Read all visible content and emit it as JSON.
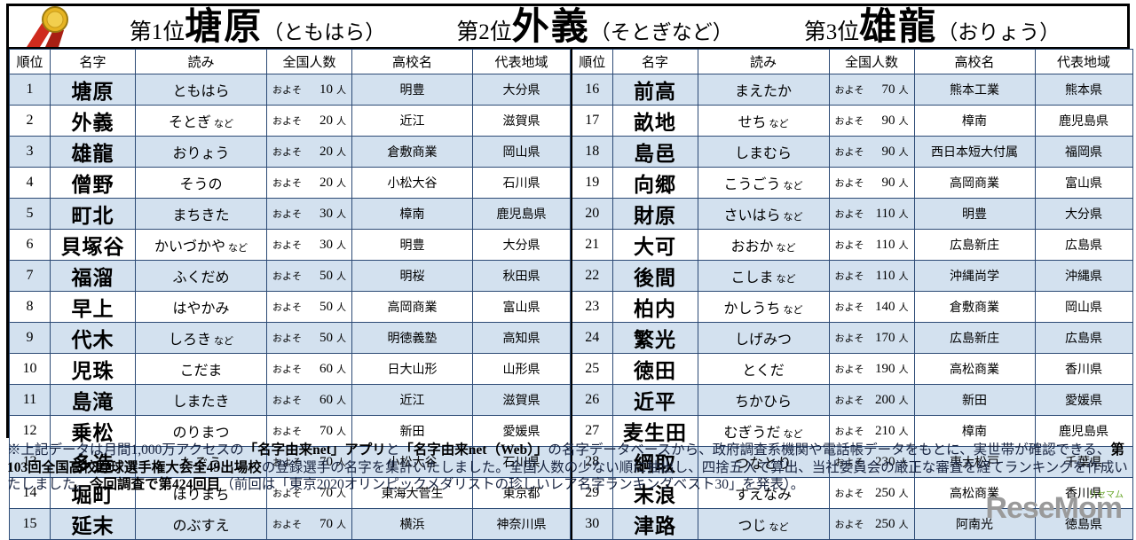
{
  "top": {
    "medal_icon": "gold-medal",
    "winners": [
      {
        "rank_label": "第1位",
        "name": "塘原",
        "reading": "（ともはら）"
      },
      {
        "rank_label": "第2位",
        "name": "外義",
        "reading": "（そとぎなど）"
      },
      {
        "rank_label": "第3位",
        "name": "雄龍",
        "reading": "（おりょう）"
      }
    ]
  },
  "chart_data": {
    "type": "table",
    "columns": [
      "順位",
      "名字",
      "読み",
      "全国人数",
      "高校名",
      "代表地域"
    ],
    "count_prefix": "およそ",
    "count_unit": "人",
    "rows": [
      {
        "rank": "1",
        "name": "塘原",
        "reading": "ともはら",
        "nado": "",
        "count": "10",
        "school": "明豊",
        "region": "大分県"
      },
      {
        "rank": "2",
        "name": "外義",
        "reading": "そとぎ",
        "nado": "など",
        "count": "20",
        "school": "近江",
        "region": "滋賀県"
      },
      {
        "rank": "3",
        "name": "雄龍",
        "reading": "おりょう",
        "nado": "",
        "count": "20",
        "school": "倉敷商業",
        "region": "岡山県"
      },
      {
        "rank": "4",
        "name": "僧野",
        "reading": "そうの",
        "nado": "",
        "count": "20",
        "school": "小松大谷",
        "region": "石川県"
      },
      {
        "rank": "5",
        "name": "町北",
        "reading": "まちきた",
        "nado": "",
        "count": "30",
        "school": "樟南",
        "region": "鹿児島県"
      },
      {
        "rank": "6",
        "name": "貝塚谷",
        "reading": "かいづかや",
        "nado": "など",
        "count": "30",
        "school": "明豊",
        "region": "大分県"
      },
      {
        "rank": "7",
        "name": "福溜",
        "reading": "ふくだめ",
        "nado": "",
        "count": "50",
        "school": "明桜",
        "region": "秋田県"
      },
      {
        "rank": "8",
        "name": "早上",
        "reading": "はやかみ",
        "nado": "",
        "count": "50",
        "school": "高岡商業",
        "region": "富山県"
      },
      {
        "rank": "9",
        "name": "代木",
        "reading": "しろき",
        "nado": "など",
        "count": "50",
        "school": "明徳義塾",
        "region": "高知県"
      },
      {
        "rank": "10",
        "name": "児珠",
        "reading": "こだま",
        "nado": "",
        "count": "60",
        "school": "日大山形",
        "region": "山形県"
      },
      {
        "rank": "11",
        "name": "島滝",
        "reading": "しまたき",
        "nado": "",
        "count": "60",
        "school": "近江",
        "region": "滋賀県"
      },
      {
        "rank": "12",
        "name": "乗松",
        "reading": "のりまつ",
        "nado": "",
        "count": "70",
        "school": "新田",
        "region": "愛媛県"
      },
      {
        "rank": "13",
        "name": "多造",
        "reading": "たぞう",
        "nado": "",
        "count": "70",
        "school": "小松大谷",
        "region": "石川県"
      },
      {
        "rank": "14",
        "name": "堀町",
        "reading": "ほりまち",
        "nado": "",
        "count": "70",
        "school": "東海大菅生",
        "region": "東京都"
      },
      {
        "rank": "15",
        "name": "延末",
        "reading": "のぶすえ",
        "nado": "",
        "count": "70",
        "school": "横浜",
        "region": "神奈川県"
      },
      {
        "rank": "16",
        "name": "前高",
        "reading": "まえたか",
        "nado": "",
        "count": "70",
        "school": "熊本工業",
        "region": "熊本県"
      },
      {
        "rank": "17",
        "name": "畝地",
        "reading": "せち",
        "nado": "など",
        "count": "90",
        "school": "樟南",
        "region": "鹿児島県"
      },
      {
        "rank": "18",
        "name": "島邑",
        "reading": "しまむら",
        "nado": "",
        "count": "90",
        "school": "西日本短大付属",
        "region": "福岡県"
      },
      {
        "rank": "19",
        "name": "向郷",
        "reading": "こうごう",
        "nado": "など",
        "count": "90",
        "school": "高岡商業",
        "region": "富山県"
      },
      {
        "rank": "20",
        "name": "財原",
        "reading": "さいはら",
        "nado": "など",
        "count": "110",
        "school": "明豊",
        "region": "大分県"
      },
      {
        "rank": "21",
        "name": "大可",
        "reading": "おおか",
        "nado": "など",
        "count": "110",
        "school": "広島新庄",
        "region": "広島県"
      },
      {
        "rank": "22",
        "name": "後間",
        "reading": "こしま",
        "nado": "など",
        "count": "110",
        "school": "沖縄尚学",
        "region": "沖縄県"
      },
      {
        "rank": "23",
        "name": "柏内",
        "reading": "かしうち",
        "nado": "など",
        "count": "140",
        "school": "倉敷商業",
        "region": "岡山県"
      },
      {
        "rank": "24",
        "name": "繁光",
        "reading": "しげみつ",
        "nado": "",
        "count": "170",
        "school": "広島新庄",
        "region": "広島県"
      },
      {
        "rank": "25",
        "name": "徳田",
        "reading": "とくだ",
        "nado": "",
        "count": "190",
        "school": "高松商業",
        "region": "香川県"
      },
      {
        "rank": "26",
        "name": "近平",
        "reading": "ちかひら",
        "nado": "",
        "count": "200",
        "school": "新田",
        "region": "愛媛県"
      },
      {
        "rank": "27",
        "name": "麦生田",
        "reading": "むぎうだ",
        "nado": "など",
        "count": "210",
        "school": "樟南",
        "region": "鹿児島県"
      },
      {
        "rank": "28",
        "name": "綱取",
        "reading": "つなとり",
        "nado": "",
        "count": "230",
        "school": "専大松戸",
        "region": "千葉県"
      },
      {
        "rank": "29",
        "name": "末浪",
        "reading": "すえなみ",
        "nado": "",
        "count": "250",
        "school": "高松商業",
        "region": "香川県"
      },
      {
        "rank": "30",
        "name": "津路",
        "reading": "つじ",
        "nado": "など",
        "count": "250",
        "school": "阿南光",
        "region": "徳島県"
      }
    ]
  },
  "footer": {
    "segments": [
      {
        "text": "※上記データは月間1,000万アクセスの",
        "bold": false
      },
      {
        "text": "「名字由来net」アプリ",
        "bold": true
      },
      {
        "text": "と",
        "bold": false
      },
      {
        "text": "「名字由来net（Web）」",
        "bold": true
      },
      {
        "text": "の名字データベースから、政府調査系機関や電話帳データをもとに、実世帯が確認できる、",
        "bold": false
      },
      {
        "text": "第103回全国高校野球選手権大会全49出場校",
        "bold": true
      },
      {
        "text": "の登録選手の名字を集計いたしました。全国人数の少ない順に抽出し、四捨五入で算出、当社委員会の厳正な審査を経てランキングを作成いたしました。",
        "bold": false
      },
      {
        "text": "今回調査で第424回目",
        "bold": true
      },
      {
        "text": "（前回は「東京2020オリンピックメダリストの珍しいレア名字ランキングベスト30」を発表）。",
        "bold": false
      }
    ]
  },
  "logo": {
    "text": "ReseMom",
    "katakana": "リセマム"
  },
  "colors": {
    "row_alt": "#d3e1ef",
    "grid_line": "#2c4a75",
    "outer_border": "#000000",
    "logo_gray": "#9a9a9a",
    "logo_green": "#6aa82c",
    "medal_gold": "#e6b422",
    "ribbon_red": "#cf2b1e"
  }
}
